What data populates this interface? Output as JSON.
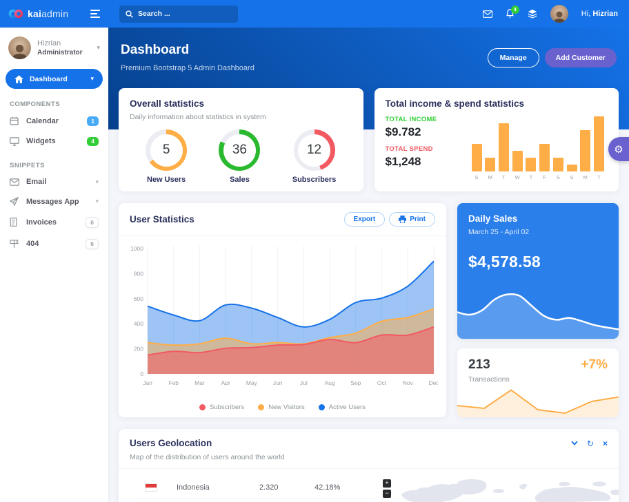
{
  "topbar": {
    "brand_bold": "kai",
    "brand_light": "admin",
    "search_placeholder": "Search ...",
    "notification_count": "4",
    "greeting_prefix": "Hi,",
    "greeting_name": "Hizrian"
  },
  "sidebar": {
    "profile": {
      "name": "Hizrian",
      "role": "Administrator"
    },
    "active_item": {
      "label": "Dashboard"
    },
    "sections": [
      {
        "label": "COMPONENTS",
        "items": [
          {
            "label": "Calendar",
            "icon": "calendar",
            "badge": "1",
            "badge_color": "#48ABF7"
          },
          {
            "label": "Widgets",
            "icon": "desktop",
            "badge": "4",
            "badge_color": "#31CE36"
          }
        ]
      },
      {
        "label": "SNIPPETS",
        "items": [
          {
            "label": "Email",
            "icon": "envelope",
            "caret": true
          },
          {
            "label": "Messages App",
            "icon": "paper-plane",
            "caret": true
          },
          {
            "label": "Invoices",
            "icon": "invoice",
            "badge": "6",
            "badge_outline": true
          },
          {
            "label": "404",
            "icon": "signpost",
            "badge": "6",
            "badge_outline": true
          }
        ]
      }
    ]
  },
  "hero": {
    "title": "Dashboard",
    "subtitle": "Premium Bootstrap 5 Admin Dashboard",
    "manage_label": "Manage",
    "add_customer_label": "Add Customer"
  },
  "overall_stats": {
    "title": "Overall statistics",
    "subtitle": "Daily information about statistics in system",
    "gauges": [
      {
        "value": "5",
        "label": "New Users",
        "color": "#FFAD46",
        "fraction": 0.65
      },
      {
        "value": "36",
        "label": "Sales",
        "color": "#2BB930",
        "fraction": 0.82
      },
      {
        "value": "12",
        "label": "Subscribers",
        "color": "#F25961",
        "fraction": 0.45
      }
    ]
  },
  "income_card": {
    "title": "Total income & spend statistics",
    "income_label": "TOTAL INCOME",
    "income_value": "$9.782",
    "spend_label": "TOTAL SPEND",
    "spend_value": "$1,248"
  },
  "user_stats_card": {
    "title": "User Statistics",
    "export_label": "Export",
    "print_label": "Print"
  },
  "daily_sales": {
    "title": "Daily Sales",
    "period": "March 25 - April 02",
    "amount": "$4,578.58"
  },
  "transactions": {
    "value": "213",
    "delta": "+7%",
    "label": "Transactions"
  },
  "geolocation": {
    "title": "Users Geolocation",
    "subtitle": "Map of the distribution of users around the world",
    "rows": [
      {
        "country": "Indonesia",
        "value": "2.320",
        "percent": "42.18%",
        "flag_colors": [
          "#e23b3b",
          "#ffffff"
        ]
      }
    ]
  },
  "colors": {
    "primary": "#1572E8",
    "purple": "#6861CE",
    "green": "#31CE36",
    "red": "#F25961",
    "orange": "#FFAD46",
    "info_badge": "#48ABF7",
    "gauge_track": "#ebedf2"
  },
  "chart_data": [
    {
      "id": "income_bars",
      "type": "bar",
      "categories": [
        "S",
        "M",
        "T",
        "W",
        "T",
        "F",
        "S",
        "S",
        "M",
        "T"
      ],
      "values": [
        50,
        25,
        87,
        38,
        25,
        50,
        25,
        13,
        75,
        100
      ],
      "title": "Total income & spend statistics",
      "xlabel": "",
      "ylabel": "",
      "ylim": [
        0,
        100
      ],
      "color": "#FFAD46",
      "grid": false
    },
    {
      "id": "user_statistics",
      "type": "area",
      "x": [
        "Jan",
        "Feb",
        "Mar",
        "Apr",
        "May",
        "Jun",
        "Jul",
        "Aug",
        "Sep",
        "Oct",
        "Nov",
        "Dec"
      ],
      "series": [
        {
          "name": "Subscribers",
          "color": "#F25961",
          "values": [
            150,
            180,
            170,
            205,
            210,
            230,
            235,
            275,
            250,
            310,
            310,
            375
          ]
        },
        {
          "name": "New Visitors",
          "color": "#FFAD46",
          "values": [
            250,
            230,
            240,
            285,
            240,
            250,
            240,
            290,
            325,
            420,
            450,
            520
          ]
        },
        {
          "name": "Active Users",
          "color": "#1572E8",
          "values": [
            540,
            470,
            425,
            550,
            525,
            450,
            375,
            435,
            570,
            605,
            700,
            900
          ]
        }
      ],
      "title": "User Statistics",
      "ylim": [
        0,
        1000
      ],
      "yticks": [
        0,
        200,
        400,
        600,
        800,
        1000
      ],
      "grid": "vertical",
      "legend_position": "bottom"
    },
    {
      "id": "daily_sales_wave",
      "type": "area",
      "values": [
        42,
        38,
        45,
        62,
        70,
        68,
        52,
        36,
        30,
        33,
        28,
        22,
        18,
        15
      ],
      "title": "Daily Sales trend",
      "line_color": "#ffffff"
    },
    {
      "id": "transactions_spark",
      "type": "line",
      "values": [
        30,
        22,
        75,
        18,
        8,
        42,
        55
      ],
      "title": "Transactions trend",
      "line_color": "#FFAD46"
    }
  ]
}
